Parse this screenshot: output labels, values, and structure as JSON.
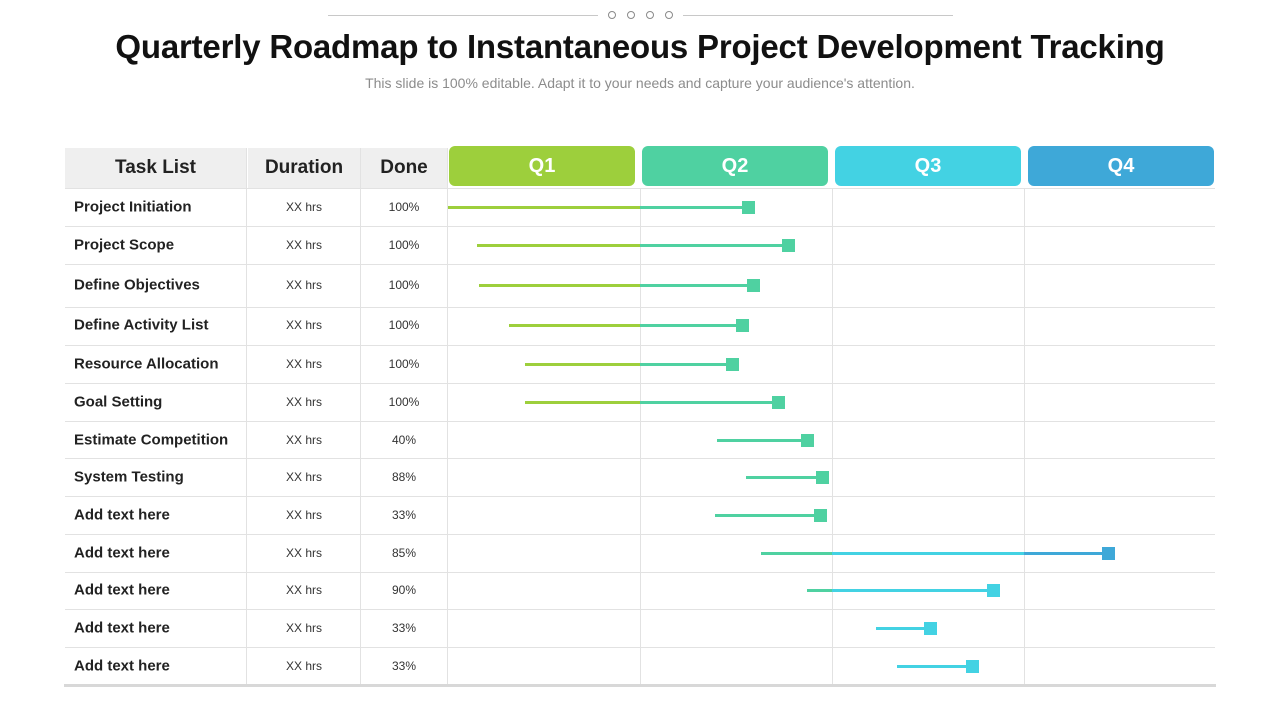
{
  "title": "Quarterly Roadmap to Instantaneous Project Development Tracking",
  "subtitle": "This slide is 100% editable. Adapt it to your needs and capture your audience's attention.",
  "headers": {
    "task": "Task List",
    "duration": "Duration",
    "done": "Done"
  },
  "quarters": [
    {
      "label": "Q1",
      "color": "#9dcf3c"
    },
    {
      "label": "Q2",
      "color": "#4fd1a1"
    },
    {
      "label": "Q3",
      "color": "#43d2e3"
    },
    {
      "label": "Q4",
      "color": "#3ea8d8"
    }
  ],
  "timeline_range": [
    0,
    4
  ],
  "tasks": [
    {
      "name": "Project Initiation",
      "duration": "XX  hrs",
      "done": "100%",
      "start": 0.0,
      "end": 1.56
    },
    {
      "name": "Project Scope",
      "duration": "XX  hrs",
      "done": "100%",
      "start": 0.15,
      "end": 1.77
    },
    {
      "name": "Define Objectives",
      "duration": "XX  hrs",
      "done": "100%",
      "start": 0.16,
      "end": 1.59
    },
    {
      "name": "Define Activity List",
      "duration": "XX  hrs",
      "done": "100%",
      "start": 0.32,
      "end": 1.53
    },
    {
      "name": "Resource Allocation",
      "duration": "XX  hrs",
      "done": "100%",
      "start": 0.4,
      "end": 1.48
    },
    {
      "name": "Goal Setting",
      "duration": "XX  hrs",
      "done": "100%",
      "start": 0.4,
      "end": 1.72
    },
    {
      "name": "Estimate Competition",
      "duration": "XX  hrs",
      "done": "40%",
      "start": 1.4,
      "end": 1.87
    },
    {
      "name": "System  Testing",
      "duration": "XX  hrs",
      "done": "88%",
      "start": 1.55,
      "end": 1.95
    },
    {
      "name": "Add  text here",
      "duration": "XX  hrs",
      "done": "33%",
      "start": 1.39,
      "end": 1.94
    },
    {
      "name": "Add  text here",
      "duration": "XX  hrs",
      "done": "85%",
      "start": 1.63,
      "end": 3.44
    },
    {
      "name": "Add  text here",
      "duration": "XX  hrs",
      "done": "90%",
      "start": 1.87,
      "end": 2.84
    },
    {
      "name": "Add  text here",
      "duration": "XX  hrs",
      "done": "33%",
      "start": 2.23,
      "end": 2.51
    },
    {
      "name": "Add  text here",
      "duration": "XX  hrs",
      "done": "33%",
      "start": 2.34,
      "end": 2.73
    }
  ]
}
